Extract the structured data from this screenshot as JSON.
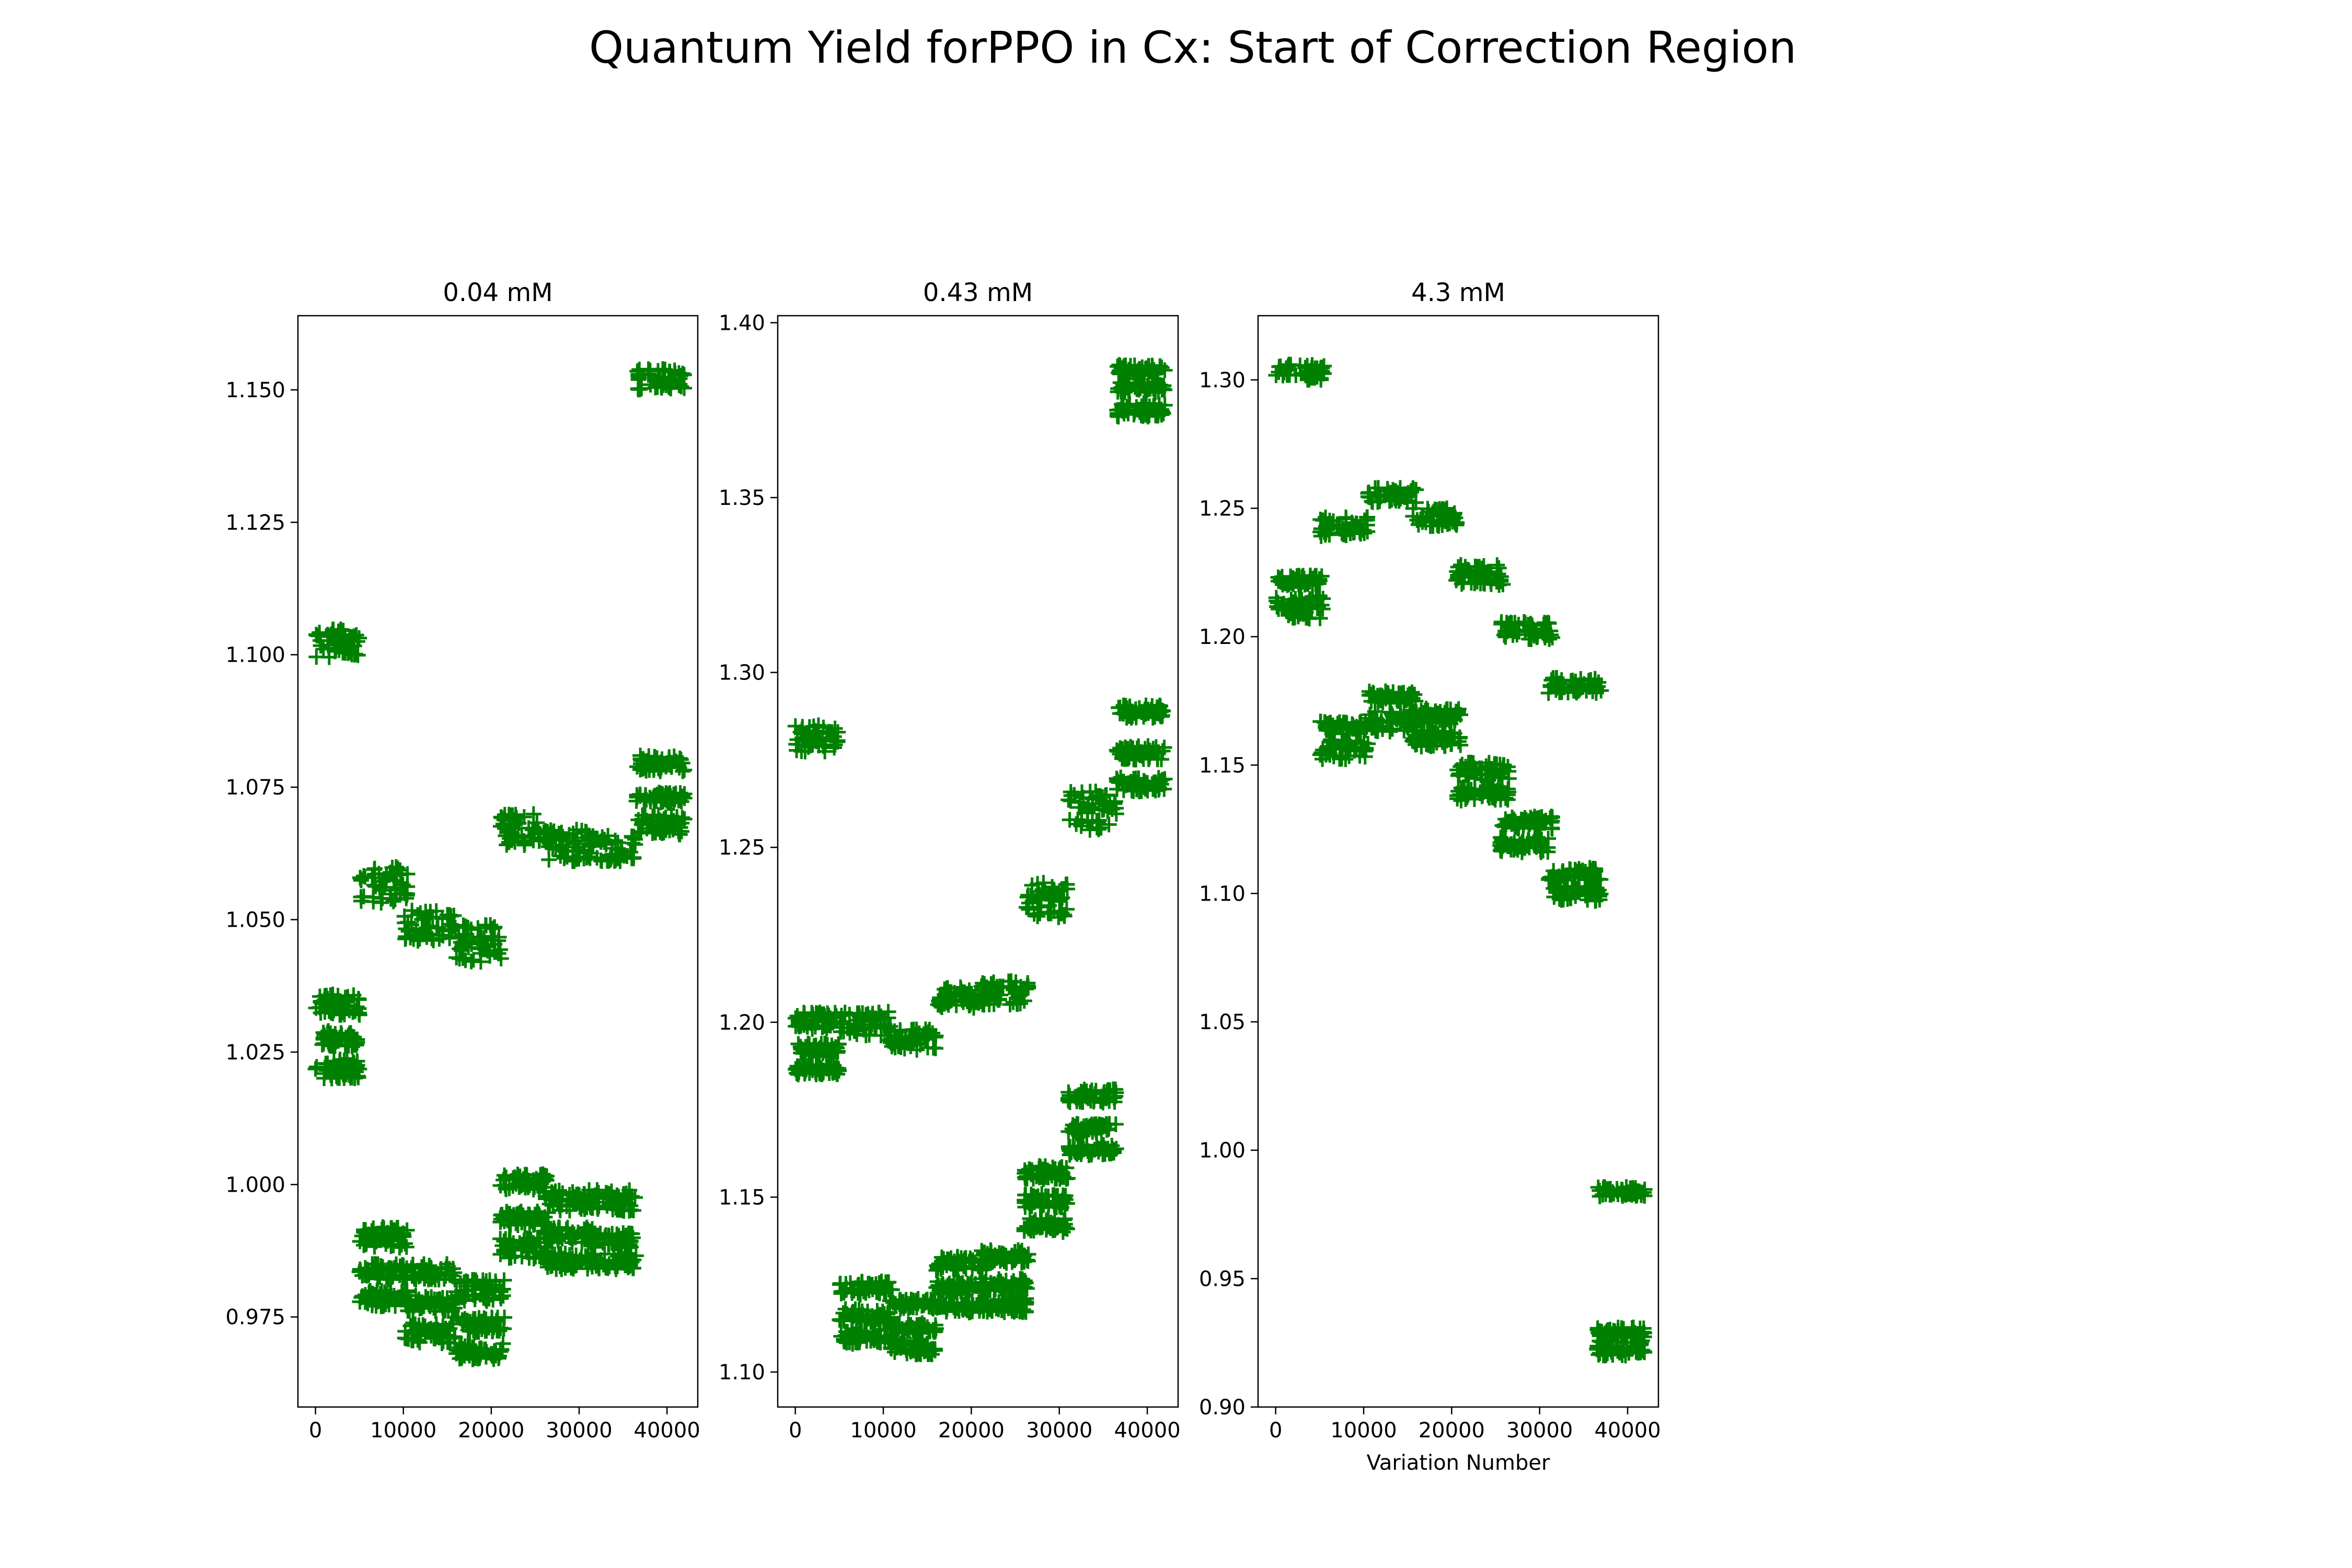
{
  "figure": {
    "title": "Quantum Yield forPPO in Cx: Start of Correction Region",
    "marker_color": "#008000"
  },
  "chart_data": [
    {
      "type": "scatter",
      "title": "0.04 mM",
      "xlabel": "",
      "ylabel": "",
      "xlim": [
        -2000,
        43500
      ],
      "ylim": [
        0.958,
        1.164
      ],
      "xticks": [
        0,
        10000,
        20000,
        30000,
        40000
      ],
      "xtick_labels": [
        "0",
        "10000",
        "20000",
        "30000",
        "40000"
      ],
      "yticks": [
        0.975,
        1.0,
        1.025,
        1.05,
        1.075,
        1.1,
        1.125,
        1.15
      ],
      "ytick_labels": [
        "0.975",
        "1.000",
        "1.025",
        "1.050",
        "1.075",
        "1.100",
        "1.125",
        "1.150"
      ],
      "marker": "+",
      "color": "#008000",
      "clusters": [
        {
          "x": [
            0,
            5000
          ],
          "y": [
            1.0995,
            1.105
          ]
        },
        {
          "x": [
            0,
            5000
          ],
          "y": [
            1.032,
            1.036
          ]
        },
        {
          "x": [
            0,
            5000
          ],
          "y": [
            1.026,
            1.029
          ]
        },
        {
          "x": [
            0,
            5000
          ],
          "y": [
            1.02,
            1.024
          ]
        },
        {
          "x": [
            5000,
            10500
          ],
          "y": [
            1.053,
            1.06
          ]
        },
        {
          "x": [
            5000,
            10500
          ],
          "y": [
            0.988,
            0.992
          ]
        },
        {
          "x": [
            5000,
            10500
          ],
          "y": [
            0.982,
            0.985
          ]
        },
        {
          "x": [
            5000,
            10500
          ],
          "y": [
            0.977,
            0.98
          ]
        },
        {
          "x": [
            10000,
            16000
          ],
          "y": [
            1.046,
            1.052
          ]
        },
        {
          "x": [
            10000,
            16000
          ],
          "y": [
            0.982,
            0.985
          ]
        },
        {
          "x": [
            10000,
            16000
          ],
          "y": [
            0.976,
            0.979
          ]
        },
        {
          "x": [
            10000,
            16000
          ],
          "y": [
            0.97,
            0.974
          ]
        },
        {
          "x": [
            16000,
            21500
          ],
          "y": [
            1.042,
            1.049
          ]
        },
        {
          "x": [
            16000,
            21500
          ],
          "y": [
            0.978,
            0.982
          ]
        },
        {
          "x": [
            16000,
            21500
          ],
          "y": [
            0.972,
            0.975
          ]
        },
        {
          "x": [
            16000,
            21500
          ],
          "y": [
            0.967,
            0.97
          ]
        },
        {
          "x": [
            21000,
            26500
          ],
          "y": [
            1.064,
            1.07
          ]
        },
        {
          "x": [
            21000,
            26500
          ],
          "y": [
            0.999,
            1.002
          ]
        },
        {
          "x": [
            21000,
            26500
          ],
          "y": [
            0.992,
            0.995
          ]
        },
        {
          "x": [
            21000,
            26500
          ],
          "y": [
            0.986,
            0.99
          ]
        },
        {
          "x": [
            26000,
            31500
          ],
          "y": [
            1.061,
            1.067
          ]
        },
        {
          "x": [
            26000,
            31500
          ],
          "y": [
            0.995,
            0.999
          ]
        },
        {
          "x": [
            26000,
            31500
          ],
          "y": [
            0.989,
            0.992
          ]
        },
        {
          "x": [
            26000,
            31500
          ],
          "y": [
            0.984,
            0.987
          ]
        },
        {
          "x": [
            31000,
            36500
          ],
          "y": [
            1.061,
            1.066
          ]
        },
        {
          "x": [
            31000,
            36500
          ],
          "y": [
            0.995,
            0.999
          ]
        },
        {
          "x": [
            31000,
            36500
          ],
          "y": [
            0.988,
            0.991
          ]
        },
        {
          "x": [
            31000,
            36500
          ],
          "y": [
            0.984,
            0.987
          ]
        },
        {
          "x": [
            36500,
            42000
          ],
          "y": [
            1.15,
            1.154
          ]
        },
        {
          "x": [
            36500,
            42000
          ],
          "y": [
            1.078,
            1.081
          ]
        },
        {
          "x": [
            36500,
            42000
          ],
          "y": [
            1.072,
            1.074
          ]
        },
        {
          "x": [
            36500,
            42000
          ],
          "y": [
            1.066,
            1.07
          ]
        }
      ]
    },
    {
      "type": "scatter",
      "title": "0.43 mM",
      "xlabel": "",
      "ylabel": "",
      "xlim": [
        -2000,
        43500
      ],
      "ylim": [
        1.09,
        1.402
      ],
      "xticks": [
        0,
        10000,
        20000,
        30000,
        40000
      ],
      "xtick_labels": [
        "0",
        "10000",
        "20000",
        "30000",
        "40000"
      ],
      "yticks": [
        1.1,
        1.15,
        1.2,
        1.25,
        1.3,
        1.35,
        1.4
      ],
      "ytick_labels": [
        "1.10",
        "1.15",
        "1.20",
        "1.25",
        "1.30",
        "1.35",
        "1.40"
      ],
      "marker": "+",
      "color": "#008000",
      "clusters": [
        {
          "x": [
            0,
            5000
          ],
          "y": [
            1.277,
            1.285
          ]
        },
        {
          "x": [
            0,
            5000
          ],
          "y": [
            1.198,
            1.203
          ]
        },
        {
          "x": [
            0,
            5000
          ],
          "y": [
            1.19,
            1.194
          ]
        },
        {
          "x": [
            0,
            5000
          ],
          "y": [
            1.185,
            1.188
          ]
        },
        {
          "x": [
            5000,
            11000
          ],
          "y": [
            1.196,
            1.203
          ]
        },
        {
          "x": [
            5000,
            11000
          ],
          "y": [
            1.122,
            1.126
          ]
        },
        {
          "x": [
            5000,
            11000
          ],
          "y": [
            1.114,
            1.118
          ]
        },
        {
          "x": [
            5000,
            11000
          ],
          "y": [
            1.108,
            1.112
          ]
        },
        {
          "x": [
            10500,
            16000
          ],
          "y": [
            1.192,
            1.198
          ]
        },
        {
          "x": [
            10500,
            16000
          ],
          "y": [
            1.118,
            1.121
          ]
        },
        {
          "x": [
            10500,
            16000
          ],
          "y": [
            1.111,
            1.114
          ]
        },
        {
          "x": [
            10500,
            16000
          ],
          "y": [
            1.105,
            1.109
          ]
        },
        {
          "x": [
            16000,
            21500
          ],
          "y": [
            1.204,
            1.21
          ]
        },
        {
          "x": [
            16000,
            21500
          ],
          "y": [
            1.129,
            1.133
          ]
        },
        {
          "x": [
            16000,
            21500
          ],
          "y": [
            1.122,
            1.126
          ]
        },
        {
          "x": [
            16000,
            21500
          ],
          "y": [
            1.117,
            1.12
          ]
        },
        {
          "x": [
            21000,
            26500
          ],
          "y": [
            1.205,
            1.212
          ]
        },
        {
          "x": [
            21000,
            26500
          ],
          "y": [
            1.131,
            1.135
          ]
        },
        {
          "x": [
            21000,
            26500
          ],
          "y": [
            1.123,
            1.127
          ]
        },
        {
          "x": [
            21000,
            26500
          ],
          "y": [
            1.117,
            1.121
          ]
        },
        {
          "x": [
            26000,
            31000
          ],
          "y": [
            1.23,
            1.24
          ]
        },
        {
          "x": [
            26000,
            31000
          ],
          "y": [
            1.155,
            1.159
          ]
        },
        {
          "x": [
            26000,
            31000
          ],
          "y": [
            1.147,
            1.151
          ]
        },
        {
          "x": [
            26000,
            31000
          ],
          "y": [
            1.14,
            1.144
          ]
        },
        {
          "x": [
            31000,
            36500
          ],
          "y": [
            1.255,
            1.266
          ]
        },
        {
          "x": [
            31000,
            36500
          ],
          "y": [
            1.177,
            1.181
          ]
        },
        {
          "x": [
            31000,
            36500
          ],
          "y": [
            1.168,
            1.171
          ]
        },
        {
          "x": [
            31000,
            36500
          ],
          "y": [
            1.162,
            1.165
          ]
        },
        {
          "x": [
            36500,
            42000
          ],
          "y": [
            1.385,
            1.388
          ]
        },
        {
          "x": [
            36500,
            42000
          ],
          "y": [
            1.38,
            1.383
          ]
        },
        {
          "x": [
            36500,
            42000
          ],
          "y": [
            1.373,
            1.377
          ]
        },
        {
          "x": [
            36500,
            42000
          ],
          "y": [
            1.287,
            1.291
          ]
        },
        {
          "x": [
            36500,
            42000
          ],
          "y": [
            1.275,
            1.279
          ]
        },
        {
          "x": [
            36500,
            42000
          ],
          "y": [
            1.266,
            1.27
          ]
        }
      ]
    },
    {
      "type": "scatter",
      "title": "4.3 mM",
      "xlabel": "Variation Number",
      "ylabel": "",
      "xlim": [
        -2000,
        43500
      ],
      "ylim": [
        0.9,
        1.325
      ],
      "xticks": [
        0,
        10000,
        20000,
        30000,
        40000
      ],
      "xtick_labels": [
        "0",
        "10000",
        "20000",
        "30000",
        "40000"
      ],
      "yticks": [
        0.9,
        0.95,
        1.0,
        1.05,
        1.1,
        1.15,
        1.2,
        1.25,
        1.3
      ],
      "ytick_labels": [
        "0.90",
        "0.95",
        "1.00",
        "1.05",
        "1.10",
        "1.15",
        "1.20",
        "1.25",
        "1.30"
      ],
      "marker": "+",
      "color": "#008000",
      "clusters": [
        {
          "x": [
            0,
            5500
          ],
          "y": [
            1.3,
            1.306
          ]
        },
        {
          "x": [
            0,
            5500
          ],
          "y": [
            1.22,
            1.224
          ]
        },
        {
          "x": [
            0,
            5500
          ],
          "y": [
            1.207,
            1.216
          ]
        },
        {
          "x": [
            5000,
            10500
          ],
          "y": [
            1.239,
            1.247
          ]
        },
        {
          "x": [
            5000,
            10500
          ],
          "y": [
            1.162,
            1.167
          ]
        },
        {
          "x": [
            5000,
            10500
          ],
          "y": [
            1.152,
            1.16
          ]
        },
        {
          "x": [
            10500,
            16000
          ],
          "y": [
            1.252,
            1.258
          ]
        },
        {
          "x": [
            10500,
            16000
          ],
          "y": [
            1.174,
            1.179
          ]
        },
        {
          "x": [
            10500,
            16000
          ],
          "y": [
            1.163,
            1.171
          ]
        },
        {
          "x": [
            15500,
            21000
          ],
          "y": [
            1.243,
            1.25
          ]
        },
        {
          "x": [
            15500,
            21000
          ],
          "y": [
            1.166,
            1.172
          ]
        },
        {
          "x": [
            15500,
            21000
          ],
          "y": [
            1.157,
            1.164
          ]
        },
        {
          "x": [
            20500,
            26500
          ],
          "y": [
            1.22,
            1.228
          ]
        },
        {
          "x": [
            20500,
            26500
          ],
          "y": [
            1.144,
            1.151
          ]
        },
        {
          "x": [
            20500,
            26500
          ],
          "y": [
            1.136,
            1.142
          ]
        },
        {
          "x": [
            25500,
            31500
          ],
          "y": [
            1.199,
            1.206
          ]
        },
        {
          "x": [
            25500,
            31500
          ],
          "y": [
            1.125,
            1.13
          ]
        },
        {
          "x": [
            25500,
            31500
          ],
          "y": [
            1.116,
            1.122
          ]
        },
        {
          "x": [
            31000,
            37000
          ],
          "y": [
            1.178,
            1.184
          ]
        },
        {
          "x": [
            31000,
            37000
          ],
          "y": [
            1.105,
            1.11
          ]
        },
        {
          "x": [
            31000,
            37000
          ],
          "y": [
            1.097,
            1.103
          ]
        },
        {
          "x": [
            36500,
            42000
          ],
          "y": [
            0.982,
            0.986
          ]
        },
        {
          "x": [
            36500,
            42000
          ],
          "y": [
            0.927,
            0.931
          ]
        },
        {
          "x": [
            36500,
            42000
          ],
          "y": [
            0.92,
            0.926
          ]
        }
      ]
    }
  ]
}
